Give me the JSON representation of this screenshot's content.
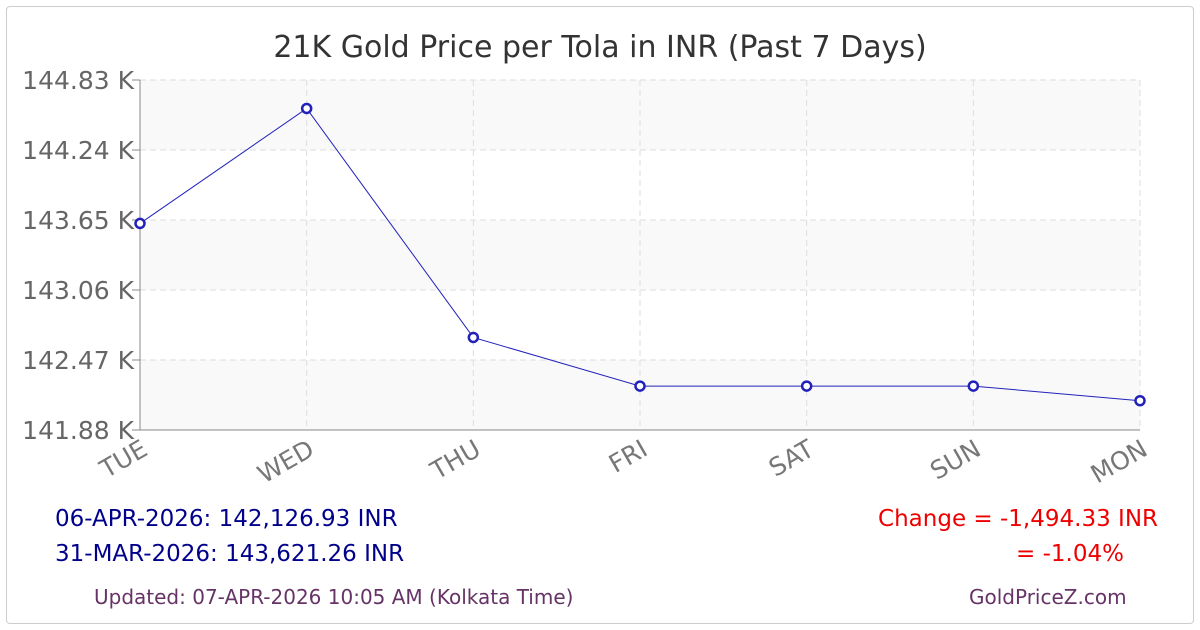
{
  "chart_data": {
    "type": "line",
    "title": "21K Gold Price per Tola in INR (Past 7 Days)",
    "categories": [
      "TUE",
      "WED",
      "THU",
      "FRI",
      "SAT",
      "SUN",
      "MON"
    ],
    "values": [
      143621.26,
      144590,
      142660,
      142250,
      142250,
      142250,
      142126.93
    ],
    "ylim": [
      141880,
      144830
    ],
    "ytick_labels": [
      "141.88 K",
      "142.47 K",
      "143.06 K",
      "143.65 K",
      "144.24 K",
      "144.83 K"
    ],
    "grid": true,
    "line_color": "#2222bb"
  },
  "footer": {
    "latest": "06-APR-2026: 142,126.93 INR",
    "previous": "31-MAR-2026: 143,621.26 INR",
    "change": "Change = -1,494.33 INR",
    "change_pct": "= -1.04%",
    "updated": "Updated: 07-APR-2026 10:05 AM (Kolkata Time)",
    "site": "GoldPriceZ.com"
  }
}
